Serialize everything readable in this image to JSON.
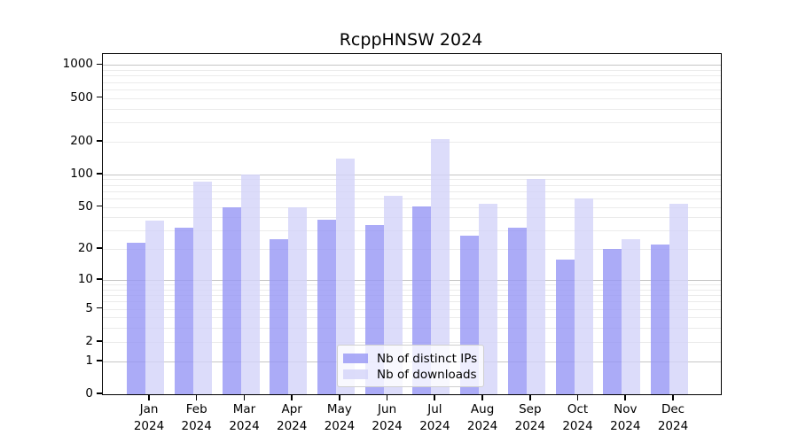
{
  "title": "RcppHNSW 2024",
  "chart_data": {
    "type": "bar",
    "title": "RcppHNSW 2024",
    "categories": [
      "Jan",
      "Feb",
      "Mar",
      "Apr",
      "May",
      "Jun",
      "Jul",
      "Aug",
      "Sep",
      "Oct",
      "Nov",
      "Dec"
    ],
    "year": "2024",
    "series": [
      {
        "name": "Nb of distinct IPs",
        "color": "rgba(150,150,245,0.8)",
        "values": [
          23,
          32,
          50,
          25,
          38,
          34,
          51,
          27,
          32,
          16,
          20,
          22
        ]
      },
      {
        "name": "Nb of downloads",
        "color": "rgba(211,211,249,0.8)",
        "values": [
          37,
          85,
          100,
          50,
          140,
          63,
          210,
          54,
          90,
          60,
          25,
          54
        ]
      }
    ],
    "xlabel": "",
    "ylabel": "",
    "yscale": "log1p",
    "yticks": [
      0,
      1,
      2,
      5,
      10,
      20,
      50,
      100,
      200,
      500,
      1000
    ],
    "major_grid_values": [
      1,
      10,
      100,
      1000
    ],
    "minor_grid_base": [
      2,
      3,
      4,
      5,
      6,
      7,
      8,
      9
    ],
    "minor_grid_decades": [
      1,
      10,
      100
    ],
    "ylim": [
      0,
      1260
    ],
    "grid": true,
    "legend_position": "bottom-center",
    "colors": {
      "major_grid": "#c6c6c6",
      "minor_grid": "#ebebeb",
      "axis": "#000000",
      "background": "#ffffff"
    }
  }
}
